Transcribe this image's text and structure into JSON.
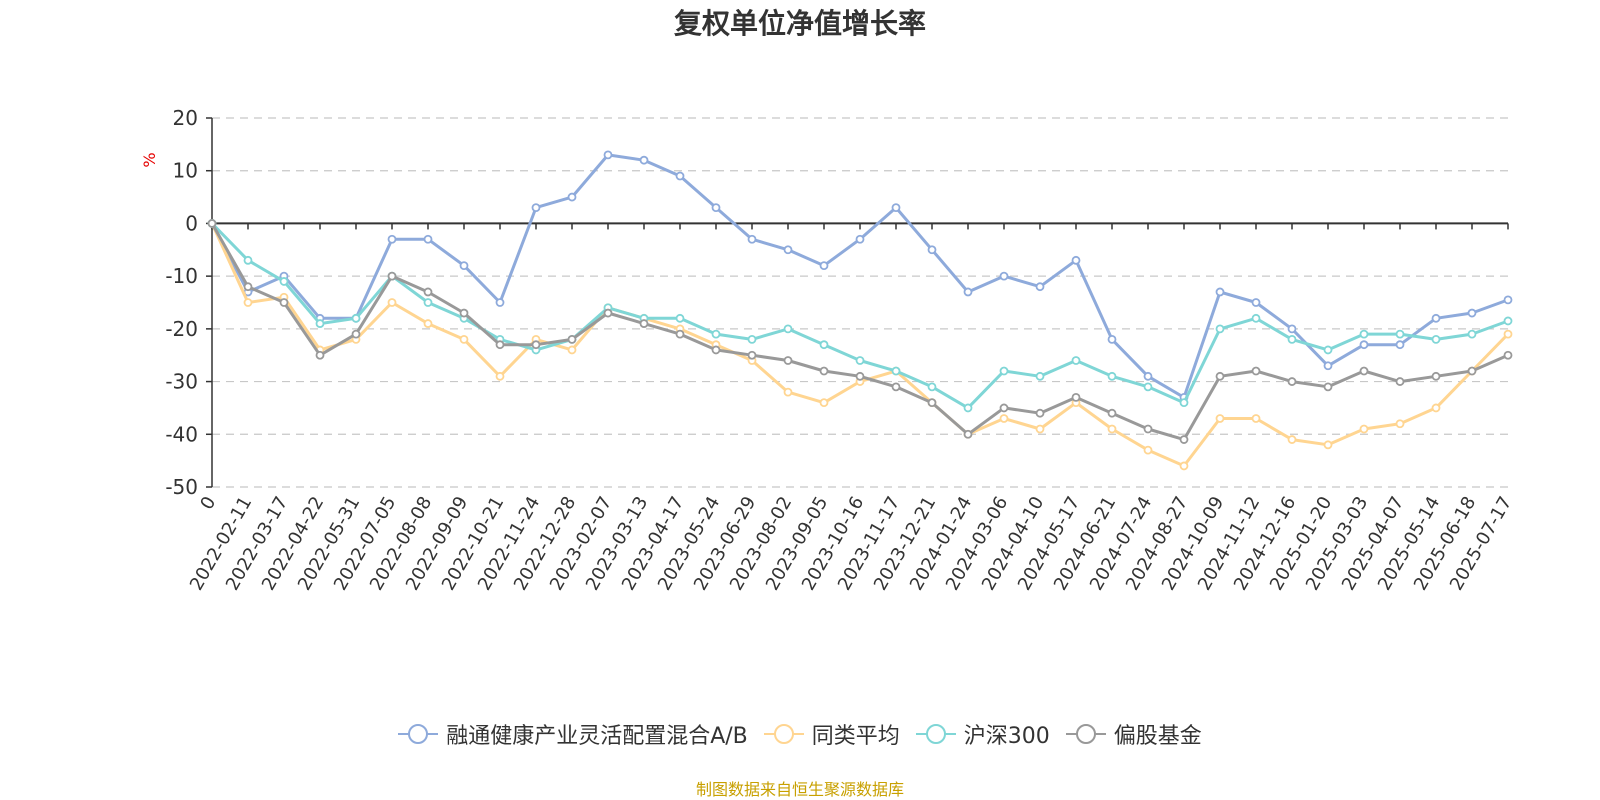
{
  "title": "复权单位净值增长率",
  "source": "制图数据来自恒生聚源数据库",
  "chart_data": {
    "type": "line",
    "title": "复权单位净值增长率",
    "ylabel": "%",
    "ylim": [
      -50,
      20
    ],
    "yticks": [
      20,
      10,
      0,
      -10,
      -20,
      -30,
      -40,
      -50
    ],
    "grid": true,
    "legend_position": "bottom",
    "x": [
      "0",
      "2022-02-11",
      "2022-03-17",
      "2022-04-22",
      "2022-05-31",
      "2022-07-05",
      "2022-08-08",
      "2022-09-09",
      "2022-10-21",
      "2022-11-24",
      "2022-12-28",
      "2023-02-07",
      "2023-03-13",
      "2023-04-17",
      "2023-05-24",
      "2023-06-29",
      "2023-08-02",
      "2023-09-05",
      "2023-10-16",
      "2023-11-17",
      "2023-12-21",
      "2024-01-24",
      "2024-03-06",
      "2024-04-10",
      "2024-05-17",
      "2024-06-21",
      "2024-07-24",
      "2024-08-27",
      "2024-10-09",
      "2024-11-12",
      "2024-12-16",
      "2025-01-20",
      "2025-03-03",
      "2025-04-07",
      "2025-05-14",
      "2025-06-18",
      "2025-07-17"
    ],
    "series": [
      {
        "name": "融通健康产业灵活配置混合A/B",
        "color": "#8eaadb",
        "values": [
          0,
          -13,
          -10,
          -18,
          -18,
          -3,
          -3,
          -8,
          -15,
          3,
          5,
          13,
          12,
          9,
          3,
          -3,
          -5,
          -8,
          -3,
          3,
          -5,
          -13,
          -10,
          -12,
          -7,
          -22,
          -29,
          -33,
          -13,
          -15,
          -20,
          -27,
          -23,
          -23,
          -18,
          -17,
          -14.5
        ]
      },
      {
        "name": "同类平均",
        "color": "#ffd591",
        "values": [
          0,
          -15,
          -14,
          -24,
          -22,
          -15,
          -19,
          -22,
          -29,
          -22,
          -24,
          -16,
          -18,
          -20,
          -23,
          -26,
          -32,
          -34,
          -30,
          -28,
          -34,
          -40,
          -37,
          -39,
          -34,
          -39,
          -43,
          -46,
          -37,
          -37,
          -41,
          -42,
          -39,
          -38,
          -35,
          -28,
          -21
        ]
      },
      {
        "name": "沪深300",
        "color": "#7fd6d6",
        "values": [
          0,
          -7,
          -11,
          -19,
          -18,
          -10,
          -15,
          -18,
          -22,
          -24,
          -22,
          -16,
          -18,
          -18,
          -21,
          -22,
          -20,
          -23,
          -26,
          -28,
          -31,
          -35,
          -28,
          -29,
          -26,
          -29,
          -31,
          -34,
          -20,
          -18,
          -22,
          -24,
          -21,
          -21,
          -22,
          -21,
          -18.5
        ]
      },
      {
        "name": "偏股基金",
        "color": "#999999",
        "values": [
          0,
          -12,
          -15,
          -25,
          -21,
          -10,
          -13,
          -17,
          -23,
          -23,
          -22,
          -17,
          -19,
          -21,
          -24,
          -25,
          -26,
          -28,
          -29,
          -31,
          -34,
          -40,
          -35,
          -36,
          -33,
          -36,
          -39,
          -41,
          -29,
          -28,
          -30,
          -31,
          -28,
          -30,
          -29,
          -28,
          -25
        ]
      }
    ]
  }
}
